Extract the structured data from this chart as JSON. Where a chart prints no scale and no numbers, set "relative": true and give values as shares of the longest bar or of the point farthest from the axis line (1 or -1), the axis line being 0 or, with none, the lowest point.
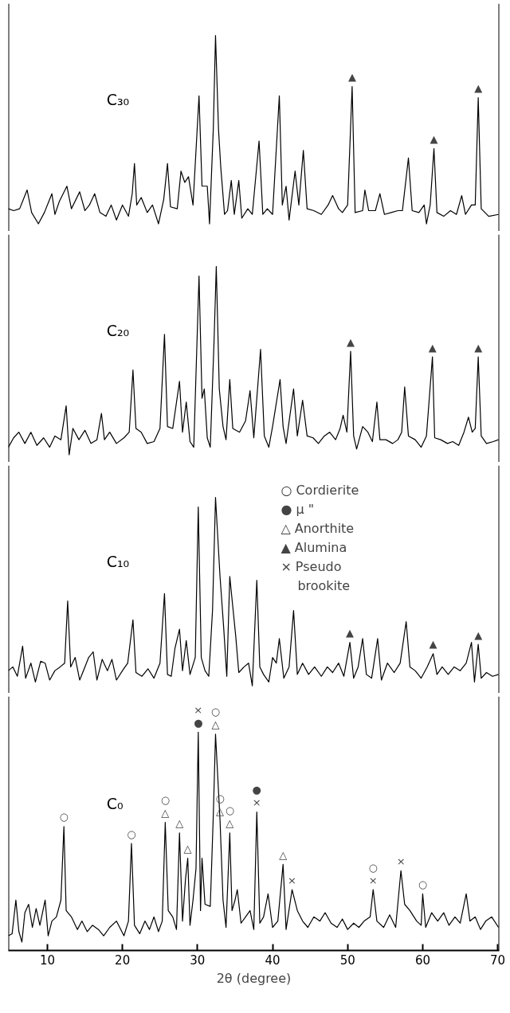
{
  "chart_data": [
    {
      "type": "line",
      "relative": true,
      "tick_labels": false,
      "xlim": [
        4.8,
        70.2
      ],
      "x": [
        4.8,
        5.5,
        6.3,
        7.3,
        7.9,
        8.8,
        9.6,
        10.6,
        11.0,
        11.6,
        12.6,
        13.2,
        14.3,
        15.0,
        15.6,
        16.3,
        17.0,
        17.8,
        18.5,
        19.2,
        20.0,
        20.8,
        21.3,
        21.6,
        21.9,
        22.5,
        23.3,
        24.0,
        24.8,
        25.5,
        26.0,
        26.4,
        27.3,
        27.8,
        28.3,
        28.8,
        29.4,
        30.2,
        30.6,
        31.3,
        31.6,
        32.1,
        32.4,
        32.8,
        33.1,
        33.6,
        34.0,
        34.5,
        34.9,
        35.5,
        35.9,
        36.7,
        37.3,
        38.2,
        38.7,
        39.3,
        40.0,
        40.9,
        41.3,
        41.8,
        42.2,
        43.0,
        43.5,
        44.1,
        44.6,
        45.5,
        46.5,
        47.4,
        48.0,
        48.8,
        49.3,
        50.0,
        50.6,
        51.0,
        52.0,
        52.3,
        52.8,
        53.7,
        54.3,
        54.9,
        55.8,
        56.7,
        57.3,
        58.1,
        58.6,
        59.5,
        60.2,
        60.5,
        61.0,
        61.5,
        61.9,
        62.8,
        63.7,
        64.5,
        65.2,
        65.7,
        66.5,
        67.0,
        67.4,
        67.8,
        68.8,
        70.1
      ],
      "series": [
        {
          "name": "C₃₀",
          "color": "#000000",
          "values": [
            0.08,
            0.07,
            0.08,
            0.18,
            0.06,
            0.0,
            0.06,
            0.16,
            0.05,
            0.12,
            0.2,
            0.08,
            0.17,
            0.07,
            0.1,
            0.16,
            0.06,
            0.04,
            0.1,
            0.02,
            0.1,
            0.04,
            0.16,
            0.32,
            0.1,
            0.14,
            0.06,
            0.1,
            0.0,
            0.13,
            0.32,
            0.09,
            0.08,
            0.28,
            0.22,
            0.25,
            0.1,
            0.68,
            0.2,
            0.2,
            0.0,
            0.5,
            1.0,
            0.5,
            0.3,
            0.05,
            0.07,
            0.23,
            0.05,
            0.23,
            0.03,
            0.08,
            0.05,
            0.44,
            0.05,
            0.08,
            0.05,
            0.68,
            0.1,
            0.2,
            0.02,
            0.28,
            0.1,
            0.39,
            0.08,
            0.07,
            0.05,
            0.1,
            0.15,
            0.08,
            0.06,
            0.1,
            0.73,
            0.06,
            0.07,
            0.18,
            0.07,
            0.07,
            0.16,
            0.05,
            0.06,
            0.07,
            0.07,
            0.35,
            0.07,
            0.06,
            0.1,
            0.0,
            0.1,
            0.4,
            0.06,
            0.04,
            0.07,
            0.05,
            0.15,
            0.05,
            0.1,
            0.1,
            0.67,
            0.08,
            0.04,
            0.05
          ]
        }
      ],
      "annotations": [
        {
          "text": "▲",
          "x": 50.6,
          "y": 0.73
        },
        {
          "text": "▲",
          "x": 61.5,
          "y": 0.4
        },
        {
          "text": "▲",
          "x": 67.4,
          "y": 0.67
        }
      ]
    },
    {
      "type": "line",
      "relative": true,
      "tick_labels": false,
      "xlim": [
        4.8,
        70.2
      ],
      "x": [
        4.8,
        5.5,
        6.2,
        7.0,
        7.8,
        8.6,
        9.5,
        10.3,
        11.0,
        11.8,
        12.5,
        12.9,
        13.4,
        14.2,
        15.0,
        15.8,
        16.6,
        17.2,
        17.6,
        18.3,
        19.2,
        20.2,
        20.9,
        21.4,
        21.8,
        22.5,
        23.3,
        24.2,
        25.0,
        25.6,
        26.0,
        26.7,
        27.6,
        28.0,
        28.5,
        29.0,
        29.5,
        30.2,
        30.6,
        30.9,
        31.3,
        31.7,
        32.2,
        32.5,
        32.9,
        33.4,
        33.8,
        34.3,
        34.7,
        35.6,
        36.4,
        37.0,
        37.5,
        38.4,
        38.9,
        39.5,
        40.0,
        41.0,
        41.4,
        41.8,
        42.8,
        43.3,
        44.0,
        44.6,
        45.4,
        46.1,
        46.9,
        47.6,
        48.4,
        49.0,
        49.4,
        49.9,
        50.4,
        50.8,
        51.2,
        52.0,
        52.7,
        53.3,
        53.9,
        54.3,
        55.1,
        56.0,
        56.7,
        57.2,
        57.6,
        58.1,
        59.0,
        59.8,
        60.5,
        61.3,
        61.6,
        62.4,
        63.3,
        64.0,
        64.8,
        65.5,
        66.1,
        66.6,
        67.0,
        67.4,
        67.8,
        68.5,
        69.4,
        70.1
      ],
      "series": [
        {
          "name": "C₂₀",
          "color": "#000000",
          "values": [
            0.04,
            0.09,
            0.12,
            0.06,
            0.12,
            0.05,
            0.09,
            0.04,
            0.1,
            0.08,
            0.26,
            0.0,
            0.14,
            0.08,
            0.13,
            0.06,
            0.08,
            0.22,
            0.08,
            0.12,
            0.06,
            0.09,
            0.12,
            0.45,
            0.14,
            0.12,
            0.06,
            0.07,
            0.14,
            0.64,
            0.15,
            0.14,
            0.39,
            0.12,
            0.28,
            0.07,
            0.04,
            0.95,
            0.3,
            0.35,
            0.09,
            0.04,
            0.6,
            1.0,
            0.35,
            0.15,
            0.08,
            0.4,
            0.14,
            0.12,
            0.18,
            0.34,
            0.09,
            0.56,
            0.1,
            0.04,
            0.15,
            0.4,
            0.15,
            0.06,
            0.35,
            0.1,
            0.29,
            0.1,
            0.09,
            0.06,
            0.1,
            0.12,
            0.08,
            0.14,
            0.21,
            0.12,
            0.55,
            0.1,
            0.03,
            0.15,
            0.12,
            0.07,
            0.28,
            0.08,
            0.08,
            0.06,
            0.08,
            0.12,
            0.36,
            0.1,
            0.08,
            0.04,
            0.1,
            0.52,
            0.09,
            0.08,
            0.06,
            0.07,
            0.05,
            0.12,
            0.2,
            0.12,
            0.14,
            0.52,
            0.1,
            0.06,
            0.07,
            0.08
          ]
        }
      ],
      "annotations": [
        {
          "text": "▲",
          "x": 50.4,
          "y": 0.55
        },
        {
          "text": "▲",
          "x": 61.3,
          "y": 0.52
        },
        {
          "text": "▲",
          "x": 67.4,
          "y": 0.52
        }
      ]
    },
    {
      "type": "line",
      "relative": true,
      "tick_labels": false,
      "xlim": [
        4.8,
        70.2
      ],
      "x": [
        4.8,
        5.4,
        6.0,
        6.7,
        7.1,
        7.8,
        8.4,
        9.1,
        9.7,
        10.3,
        11.0,
        11.7,
        12.3,
        12.7,
        13.1,
        13.7,
        14.3,
        15.0,
        15.5,
        16.1,
        16.6,
        17.3,
        18.0,
        18.6,
        19.2,
        20.0,
        20.7,
        21.4,
        21.8,
        22.6,
        23.4,
        24.2,
        25.0,
        25.6,
        26.0,
        26.5,
        27.0,
        27.6,
        28.0,
        28.5,
        29.0,
        29.7,
        30.1,
        30.5,
        31.0,
        31.5,
        32.0,
        32.4,
        33.0,
        33.5,
        33.9,
        34.3,
        35.1,
        35.5,
        36.2,
        36.8,
        37.3,
        37.9,
        38.3,
        38.8,
        39.5,
        40.0,
        40.5,
        40.9,
        41.5,
        42.2,
        42.8,
        43.3,
        44.0,
        44.8,
        45.6,
        46.5,
        47.3,
        48.0,
        48.8,
        49.5,
        50.3,
        50.8,
        51.4,
        52.0,
        52.5,
        53.2,
        54.0,
        54.5,
        55.3,
        56.2,
        57.0,
        57.8,
        58.3,
        59.0,
        59.8,
        60.6,
        61.4,
        61.9,
        62.6,
        63.4,
        64.2,
        65.0,
        65.8,
        66.5,
        66.9,
        67.4,
        67.8,
        68.5,
        69.3,
        70.1
      ],
      "series": [
        {
          "name": "C₁₀",
          "color": "#000000",
          "values": [
            0.08,
            0.1,
            0.05,
            0.21,
            0.04,
            0.12,
            0.02,
            0.13,
            0.12,
            0.03,
            0.08,
            0.1,
            0.12,
            0.45,
            0.1,
            0.15,
            0.03,
            0.1,
            0.15,
            0.18,
            0.03,
            0.14,
            0.08,
            0.14,
            0.03,
            0.08,
            0.12,
            0.35,
            0.07,
            0.05,
            0.09,
            0.04,
            0.12,
            0.49,
            0.06,
            0.05,
            0.2,
            0.3,
            0.08,
            0.24,
            0.06,
            0.15,
            0.95,
            0.15,
            0.08,
            0.05,
            0.4,
            1.0,
            0.58,
            0.3,
            0.05,
            0.58,
            0.26,
            0.07,
            0.1,
            0.12,
            0.0,
            0.56,
            0.1,
            0.06,
            0.02,
            0.15,
            0.12,
            0.25,
            0.04,
            0.1,
            0.4,
            0.06,
            0.12,
            0.06,
            0.1,
            0.05,
            0.1,
            0.07,
            0.12,
            0.05,
            0.23,
            0.04,
            0.1,
            0.25,
            0.06,
            0.04,
            0.25,
            0.03,
            0.12,
            0.07,
            0.12,
            0.34,
            0.1,
            0.08,
            0.04,
            0.1,
            0.17,
            0.06,
            0.1,
            0.06,
            0.1,
            0.08,
            0.12,
            0.23,
            0.02,
            0.22,
            0.04,
            0.07,
            0.05,
            0.06
          ]
        }
      ],
      "annotations": [
        "○ Cordierite",
        "● μ    \"",
        "△ Anorthite",
        "▲ Alumina",
        "× Pseudo\nbrookite",
        {
          "text": "▲",
          "x": 50.3,
          "y": 0.23
        },
        {
          "text": "▲",
          "x": 61.4,
          "y": 0.17
        },
        {
          "text": "▲",
          "x": 67.4,
          "y": 0.22
        }
      ]
    },
    {
      "type": "line",
      "relative": true,
      "tick_labels": "x",
      "xlim": [
        4.8,
        70.2
      ],
      "xticks": [
        10,
        20,
        30,
        40,
        50,
        60,
        70
      ],
      "xlabel": "2θ (degree)",
      "x": [
        4.8,
        5.3,
        5.8,
        6.2,
        6.6,
        7.0,
        7.5,
        8.0,
        8.5,
        9.0,
        9.7,
        10.1,
        10.6,
        11.2,
        11.8,
        12.2,
        12.5,
        13.2,
        14.0,
        14.6,
        15.3,
        16.0,
        16.8,
        17.5,
        18.3,
        19.2,
        20.2,
        20.8,
        21.2,
        21.6,
        22.3,
        23.0,
        23.6,
        24.2,
        24.8,
        25.3,
        25.7,
        26.1,
        26.7,
        27.2,
        27.6,
        28.0,
        28.4,
        28.7,
        29.0,
        29.4,
        29.8,
        30.1,
        30.4,
        30.6,
        31.0,
        31.7,
        32.1,
        32.4,
        33.0,
        33.4,
        33.8,
        34.3,
        34.6,
        35.0,
        35.3,
        35.8,
        36.4,
        37.0,
        37.5,
        37.9,
        38.3,
        38.8,
        39.4,
        40.0,
        40.7,
        41.4,
        41.8,
        42.6,
        43.3,
        44.0,
        44.7,
        45.5,
        46.3,
        47.0,
        47.8,
        48.6,
        49.3,
        50.0,
        50.8,
        51.5,
        52.2,
        53.0,
        53.4,
        53.9,
        54.8,
        55.6,
        56.4,
        57.1,
        57.6,
        58.3,
        59.2,
        59.8,
        60.0,
        60.4,
        61.2,
        62.0,
        62.8,
        63.5,
        64.3,
        65.0,
        65.8,
        66.3,
        67.0,
        67.7,
        68.4,
        69.2,
        70.1
      ],
      "series": [
        {
          "name": "C₀",
          "color": "#000000",
          "values": [
            0.03,
            0.04,
            0.2,
            0.05,
            0.0,
            0.14,
            0.18,
            0.07,
            0.16,
            0.08,
            0.2,
            0.03,
            0.1,
            0.12,
            0.2,
            0.55,
            0.15,
            0.12,
            0.06,
            0.1,
            0.05,
            0.08,
            0.06,
            0.03,
            0.07,
            0.1,
            0.03,
            0.1,
            0.47,
            0.08,
            0.04,
            0.1,
            0.06,
            0.12,
            0.05,
            0.1,
            0.57,
            0.15,
            0.12,
            0.06,
            0.52,
            0.1,
            0.3,
            0.4,
            0.08,
            0.2,
            0.35,
            1.0,
            0.15,
            0.4,
            0.18,
            0.17,
            0.6,
            0.99,
            0.58,
            0.2,
            0.07,
            0.52,
            0.15,
            0.2,
            0.25,
            0.09,
            0.12,
            0.15,
            0.06,
            0.62,
            0.09,
            0.12,
            0.23,
            0.07,
            0.1,
            0.37,
            0.06,
            0.25,
            0.15,
            0.1,
            0.07,
            0.12,
            0.1,
            0.14,
            0.09,
            0.07,
            0.11,
            0.06,
            0.09,
            0.07,
            0.1,
            0.12,
            0.25,
            0.1,
            0.07,
            0.13,
            0.07,
            0.34,
            0.18,
            0.15,
            0.1,
            0.08,
            0.23,
            0.07,
            0.14,
            0.1,
            0.14,
            0.08,
            0.12,
            0.09,
            0.23,
            0.1,
            0.12,
            0.06,
            0.1,
            0.12,
            0.07
          ]
        }
      ],
      "annotations": [
        {
          "text": "○",
          "x": 12.2,
          "y": 0.55
        },
        {
          "text": "○",
          "x": 21.2,
          "y": 0.47
        },
        {
          "text": "△",
          "x": 25.7,
          "y": 0.57
        },
        {
          "text": "○",
          "x": 25.7,
          "y": 0.57
        },
        {
          "text": "△",
          "x": 27.6,
          "y": 0.52
        },
        {
          "text": "△",
          "x": 28.7,
          "y": 0.4
        },
        {
          "text": "●",
          "x": 30.1,
          "y": 1.0
        },
        {
          "text": "×",
          "x": 30.1,
          "y": 1.0
        },
        {
          "text": "△",
          "x": 32.4,
          "y": 0.99
        },
        {
          "text": "○",
          "x": 32.4,
          "y": 0.99
        },
        {
          "text": "△",
          "x": 33.0,
          "y": 0.58
        },
        {
          "text": "○",
          "x": 33.0,
          "y": 0.58
        },
        {
          "text": "△",
          "x": 34.3,
          "y": 0.52
        },
        {
          "text": "○",
          "x": 34.3,
          "y": 0.52
        },
        {
          "text": "×",
          "x": 37.9,
          "y": 0.62
        },
        {
          "text": "●",
          "x": 37.9,
          "y": 0.62
        },
        {
          "text": "△",
          "x": 41.4,
          "y": 0.37
        },
        {
          "text": "×",
          "x": 42.6,
          "y": 0.25
        },
        {
          "text": "×",
          "x": 53.4,
          "y": 0.25
        },
        {
          "text": "○",
          "x": 53.4,
          "y": 0.25
        },
        {
          "text": "×",
          "x": 57.1,
          "y": 0.34
        },
        {
          "text": "○",
          "x": 60.0,
          "y": 0.23
        }
      ]
    }
  ]
}
